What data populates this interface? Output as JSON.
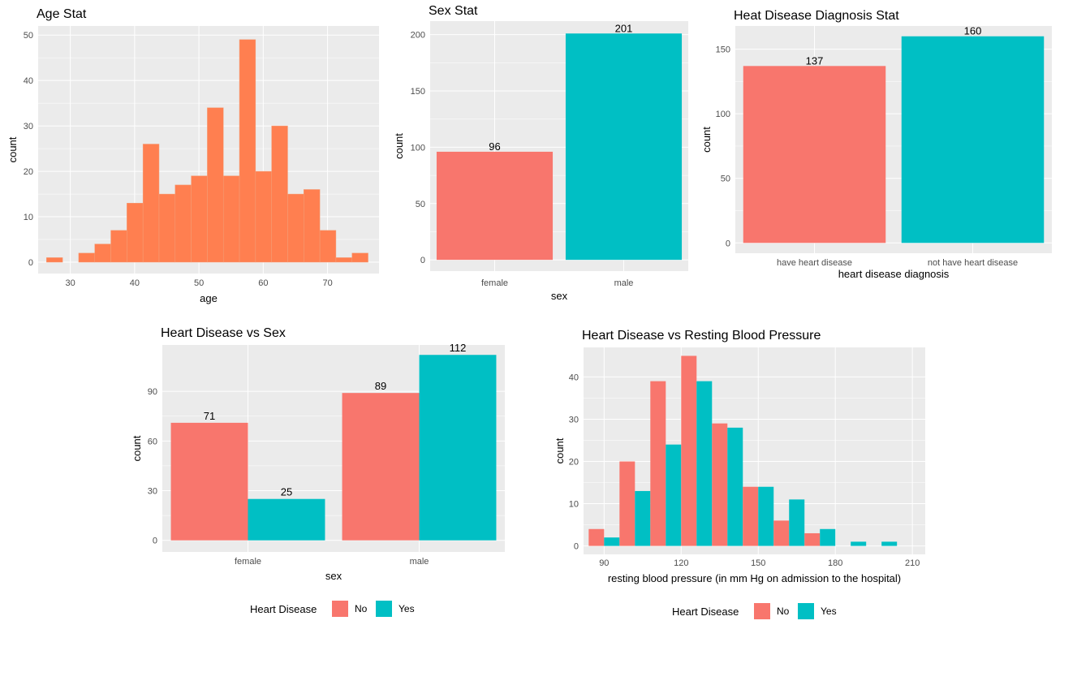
{
  "chart_data": [
    {
      "id": "age",
      "type": "bar",
      "title": "Age Stat",
      "xlabel": "age",
      "ylabel": "count",
      "xlim": [
        25,
        78
      ],
      "ylim": [
        -2.5,
        52
      ],
      "xticks": [
        30,
        40,
        50,
        60,
        70
      ],
      "yticks": [
        0,
        10,
        20,
        30,
        40,
        50
      ],
      "bin_width": 2.5,
      "bin_starts": [
        26.3,
        28.8,
        31.3,
        33.8,
        36.3,
        38.8,
        41.3,
        43.8,
        46.3,
        48.8,
        51.3,
        53.8,
        56.3,
        58.8,
        61.3,
        63.8,
        66.3,
        68.8,
        71.3,
        73.8
      ],
      "values": [
        1,
        0,
        2,
        4,
        7,
        13,
        26,
        15,
        17,
        19,
        34,
        19,
        49,
        20,
        30,
        15,
        16,
        7,
        1,
        2
      ],
      "color": "#FF7F50"
    },
    {
      "id": "sex",
      "type": "bar",
      "title": "Sex Stat",
      "xlabel": "sex",
      "ylabel": "count",
      "ylim": [
        -10,
        212
      ],
      "yticks": [
        0,
        50,
        100,
        150,
        200
      ],
      "categories": [
        "female",
        "male"
      ],
      "values": [
        96,
        201
      ],
      "data_labels": [
        "96",
        "201"
      ],
      "colors": [
        "#F8766D",
        "#00BFC4"
      ]
    },
    {
      "id": "diag",
      "type": "bar",
      "title": "Heat Disease Diagnosis Stat",
      "xlabel": "heart disease diagnosis",
      "ylabel": "count",
      "ylim": [
        -8,
        168
      ],
      "yticks": [
        0,
        50,
        100,
        150
      ],
      "categories": [
        "have heart disease",
        "not have heart disease"
      ],
      "values": [
        137,
        160
      ],
      "data_labels": [
        "137",
        "160"
      ],
      "colors": [
        "#F8766D",
        "#00BFC4"
      ]
    },
    {
      "id": "hdsex",
      "type": "bar",
      "title": "Heart Disease vs Sex",
      "xlabel": "sex",
      "ylabel": "count",
      "ylim": [
        -7,
        118
      ],
      "yticks": [
        0,
        30,
        60,
        90
      ],
      "categories": [
        "female",
        "male"
      ],
      "series": [
        {
          "name": "No",
          "values": [
            71,
            89
          ],
          "color": "#F8766D"
        },
        {
          "name": "Yes",
          "values": [
            25,
            112
          ],
          "color": "#00BFC4"
        }
      ],
      "legend": {
        "title": "Heart Disease",
        "position": "bottom"
      }
    },
    {
      "id": "bp",
      "type": "bar",
      "title": "Heart Disease vs Resting Blood Pressure",
      "xlabel": "resting blood pressure (in mm Hg on admission to the hospital)",
      "ylabel": "count",
      "xlim": [
        82,
        215
      ],
      "ylim": [
        -2,
        47
      ],
      "xticks": [
        90,
        120,
        150,
        180,
        210
      ],
      "yticks": [
        0,
        10,
        20,
        30,
        40
      ],
      "bin_width": 12,
      "bin_starts": [
        90,
        102,
        114,
        126,
        138,
        150,
        162,
        174,
        186,
        198
      ],
      "series": [
        {
          "name": "No",
          "values": [
            4,
            20,
            39,
            45,
            29,
            14,
            6,
            3,
            0,
            0
          ],
          "color": "#F8766D"
        },
        {
          "name": "Yes",
          "values": [
            2,
            13,
            24,
            39,
            28,
            14,
            11,
            4,
            1,
            1
          ],
          "color": "#00BFC4"
        }
      ],
      "legend": {
        "title": "Heart Disease",
        "position": "bottom"
      }
    }
  ]
}
